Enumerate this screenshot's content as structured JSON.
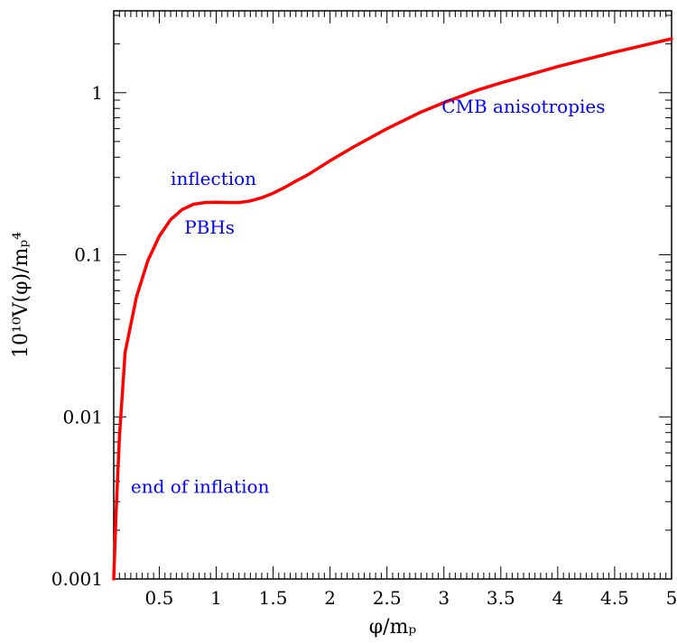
{
  "chart_data": {
    "type": "line",
    "title": "",
    "xlabel": "φ/mₚ",
    "ylabel": "10¹⁰V(φ)/mₚ⁴",
    "xlim": [
      0.1,
      5.0
    ],
    "ylim": [
      0.001,
      3.2
    ],
    "yscale": "log",
    "grid": false,
    "xticks": [
      0.5,
      1,
      1.5,
      2,
      2.5,
      3,
      3.5,
      4,
      4.5,
      5
    ],
    "xtick_labels": [
      "0.5",
      "1",
      "1.5",
      "2",
      "2.5",
      "3",
      "3.5",
      "4",
      "4.5",
      "5"
    ],
    "yticks": [
      0.001,
      0.01,
      0.1,
      1
    ],
    "ytick_labels": [
      "0.001",
      "0.01",
      "0.1",
      "1"
    ],
    "series": [
      {
        "color": "#ff0000",
        "x": [
          0.1,
          0.12,
          0.15,
          0.2,
          0.3,
          0.4,
          0.5,
          0.6,
          0.7,
          0.8,
          0.9,
          1.0,
          1.1,
          1.2,
          1.3,
          1.4,
          1.5,
          1.6,
          1.7,
          1.8,
          2.0,
          2.2,
          2.5,
          2.8,
          3.0,
          3.3,
          3.5,
          4.0,
          4.5,
          5.0
        ],
        "y": [
          0.001,
          0.0025,
          0.0075,
          0.025,
          0.055,
          0.092,
          0.13,
          0.165,
          0.19,
          0.205,
          0.21,
          0.211,
          0.21,
          0.21,
          0.215,
          0.225,
          0.24,
          0.26,
          0.285,
          0.31,
          0.38,
          0.46,
          0.6,
          0.76,
          0.87,
          1.04,
          1.15,
          1.45,
          1.78,
          2.15
        ]
      }
    ],
    "annotations": [
      {
        "text": "CMB anisotropies",
        "x": 2.98,
        "y": 0.75
      },
      {
        "text": "inflection",
        "x": 0.6,
        "y": 0.27
      },
      {
        "text": "PBHs",
        "x": 0.72,
        "y": 0.135
      },
      {
        "text": "end of inflation",
        "x": 0.25,
        "y": 0.0034
      }
    ]
  }
}
